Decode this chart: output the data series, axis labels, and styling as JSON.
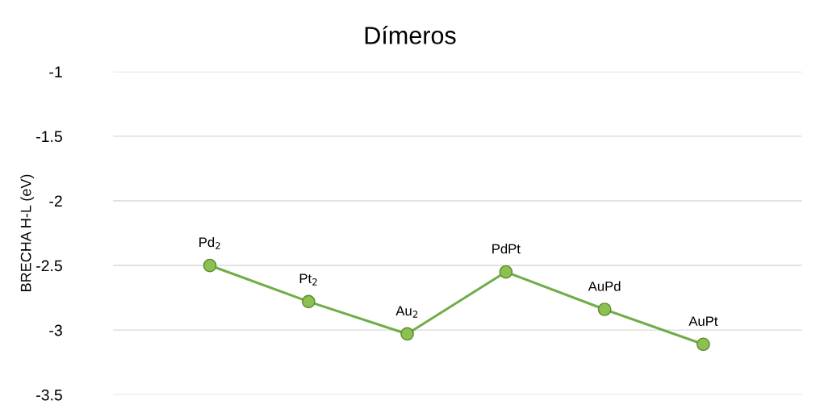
{
  "chart_data": {
    "type": "line",
    "title": "Dímeros",
    "ylabel": "BRECHA H-L (eV)",
    "categories": [
      "Pd$_{2}$",
      "Pt$_{2}$",
      "Au$_{2}$",
      "PdPt",
      "AuPd",
      "AuPt"
    ],
    "series": [
      {
        "color": "#70ad47",
        "values": [
          -2.5,
          -2.78,
          -3.03,
          -2.55,
          -2.84,
          -3.11
        ]
      }
    ],
    "ylim": [
      -3.5,
      -1
    ],
    "yticks": [
      -1,
      -1.5,
      -2,
      -2.5,
      -3,
      -3.5
    ],
    "grid": "y",
    "marker": "circle",
    "line_style": "solid",
    "tick_labels": "y"
  }
}
